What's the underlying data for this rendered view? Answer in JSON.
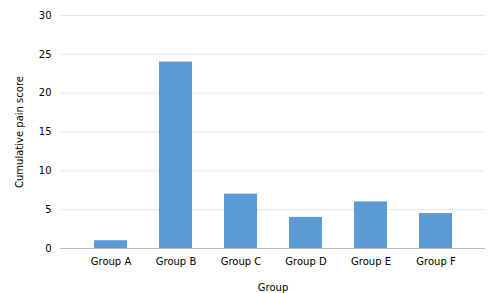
{
  "chart_data": {
    "type": "bar",
    "categories": [
      "Group A",
      "Group B",
      "Group C",
      "Group D",
      "Group E",
      "Group F"
    ],
    "values": [
      1,
      24,
      7,
      4,
      6,
      4.5
    ],
    "color": "#5b9bd5",
    "xlabel": "Group",
    "ylabel": "Cumulative pain score",
    "ylim": [
      0,
      30
    ],
    "yticks": [
      0,
      5,
      10,
      15,
      20,
      25,
      30
    ],
    "grid": true
  }
}
